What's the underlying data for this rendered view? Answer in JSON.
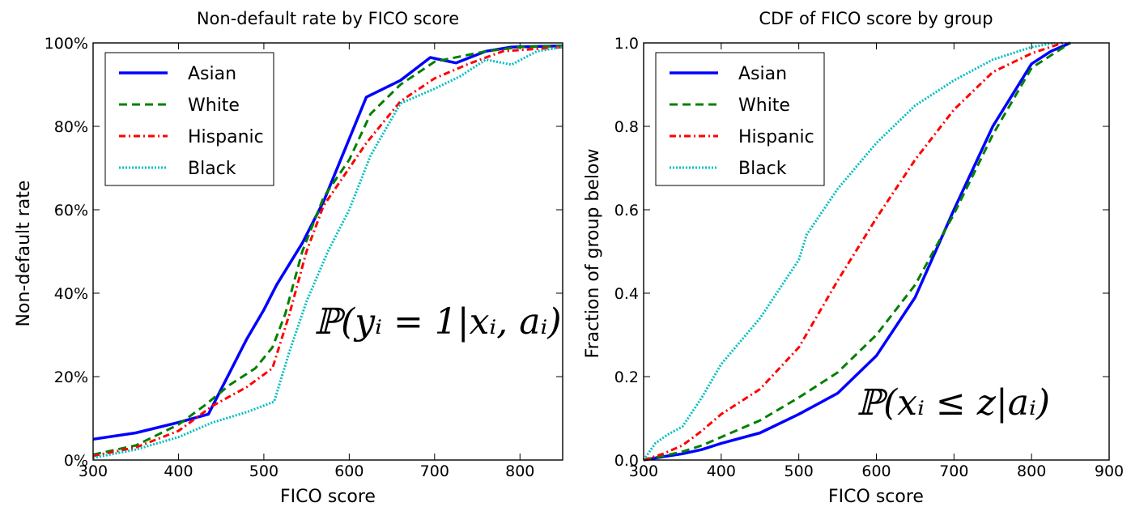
{
  "chart_data": [
    {
      "type": "line",
      "title": "Non-default rate by FICO score",
      "xlabel": "FICO score",
      "ylabel": "Non-default rate",
      "xlim": [
        300,
        850
      ],
      "ylim": [
        0,
        1
      ],
      "xticks": [
        300,
        400,
        500,
        600,
        700,
        800
      ],
      "xtick_labels": [
        "300",
        "400",
        "500",
        "600",
        "700",
        "800"
      ],
      "yticks": [
        0,
        0.2,
        0.4,
        0.6,
        0.8,
        1.0
      ],
      "ytick_labels": [
        "0%",
        "20%",
        "40%",
        "60%",
        "80%",
        "100%"
      ],
      "grid": false,
      "legend_position": "top-left",
      "annotation": "ℙ(yᵢ = 1|xᵢ, aᵢ)",
      "series": [
        {
          "name": "Asian",
          "color": "#0000ff",
          "style": "solid",
          "x": [
            300,
            350,
            400,
            435,
            460,
            480,
            500,
            515,
            545,
            570,
            600,
            620,
            660,
            695,
            725,
            760,
            790,
            850
          ],
          "y": [
            0.05,
            0.065,
            0.09,
            0.11,
            0.21,
            0.29,
            0.36,
            0.42,
            0.52,
            0.62,
            0.77,
            0.87,
            0.91,
            0.965,
            0.952,
            0.98,
            0.99,
            0.993
          ]
        },
        {
          "name": "White",
          "color": "#008000",
          "style": "dashed",
          "x": [
            300,
            350,
            400,
            430,
            460,
            490,
            510,
            525,
            545,
            570,
            600,
            625,
            660,
            700,
            760,
            800,
            850
          ],
          "y": [
            0.013,
            0.035,
            0.085,
            0.13,
            0.18,
            0.22,
            0.27,
            0.35,
            0.5,
            0.63,
            0.72,
            0.83,
            0.9,
            0.955,
            0.98,
            0.99,
            0.993
          ]
        },
        {
          "name": "Hispanic",
          "color": "#ff0000",
          "style": "dashdot",
          "x": [
            300,
            350,
            400,
            440,
            480,
            510,
            530,
            550,
            570,
            600,
            620,
            660,
            700,
            740,
            780,
            850
          ],
          "y": [
            0.01,
            0.03,
            0.07,
            0.13,
            0.175,
            0.22,
            0.35,
            0.5,
            0.61,
            0.7,
            0.76,
            0.86,
            0.915,
            0.95,
            0.98,
            0.99
          ]
        },
        {
          "name": "Black",
          "color": "#00bfbf",
          "style": "dotted",
          "x": [
            300,
            350,
            400,
            440,
            480,
            512,
            530,
            550,
            575,
            600,
            625,
            660,
            700,
            730,
            760,
            790,
            820,
            850
          ],
          "y": [
            0.005,
            0.025,
            0.055,
            0.09,
            0.115,
            0.14,
            0.26,
            0.38,
            0.5,
            0.6,
            0.73,
            0.855,
            0.89,
            0.92,
            0.96,
            0.948,
            0.98,
            0.99
          ]
        }
      ]
    },
    {
      "type": "line",
      "title": "CDF of FICO score by group",
      "xlabel": "FICO score",
      "ylabel": "Fraction of group below",
      "xlim": [
        300,
        900
      ],
      "ylim": [
        0,
        1
      ],
      "xticks": [
        300,
        400,
        500,
        600,
        700,
        800,
        900
      ],
      "xtick_labels": [
        "300",
        "400",
        "500",
        "600",
        "700",
        "800",
        "900"
      ],
      "yticks": [
        0,
        0.2,
        0.4,
        0.6,
        0.8,
        1.0
      ],
      "ytick_labels": [
        "0.0",
        "0.2",
        "0.4",
        "0.6",
        "0.8",
        "1.0"
      ],
      "grid": false,
      "legend_position": "top-left",
      "annotation": "ℙ(xᵢ ≤ z|aᵢ)",
      "series": [
        {
          "name": "Asian",
          "color": "#0000ff",
          "style": "solid",
          "x": [
            300,
            325,
            350,
            375,
            400,
            450,
            500,
            550,
            600,
            650,
            700,
            750,
            800,
            825,
            850
          ],
          "y": [
            0.0,
            0.008,
            0.015,
            0.025,
            0.04,
            0.065,
            0.11,
            0.16,
            0.25,
            0.39,
            0.6,
            0.8,
            0.95,
            0.98,
            1.0
          ]
        },
        {
          "name": "White",
          "color": "#008000",
          "style": "dashed",
          "x": [
            300,
            325,
            350,
            375,
            400,
            450,
            500,
            550,
            600,
            650,
            700,
            750,
            800,
            825,
            850
          ],
          "y": [
            0.0,
            0.01,
            0.02,
            0.035,
            0.055,
            0.095,
            0.15,
            0.21,
            0.3,
            0.42,
            0.59,
            0.78,
            0.94,
            0.97,
            1.0
          ]
        },
        {
          "name": "Hispanic",
          "color": "#ff0000",
          "style": "dashdot",
          "x": [
            300,
            325,
            350,
            375,
            400,
            450,
            500,
            550,
            600,
            650,
            700,
            750,
            800,
            840
          ],
          "y": [
            0.0,
            0.015,
            0.035,
            0.07,
            0.11,
            0.17,
            0.27,
            0.43,
            0.58,
            0.72,
            0.84,
            0.93,
            0.975,
            1.0
          ]
        },
        {
          "name": "Black",
          "color": "#00bfbf",
          "style": "dotted",
          "x": [
            300,
            315,
            330,
            350,
            375,
            400,
            450,
            500,
            510,
            550,
            600,
            650,
            700,
            750,
            800,
            830
          ],
          "y": [
            0.0,
            0.04,
            0.06,
            0.08,
            0.15,
            0.23,
            0.34,
            0.48,
            0.54,
            0.65,
            0.76,
            0.85,
            0.91,
            0.96,
            0.99,
            1.0
          ]
        }
      ]
    }
  ]
}
